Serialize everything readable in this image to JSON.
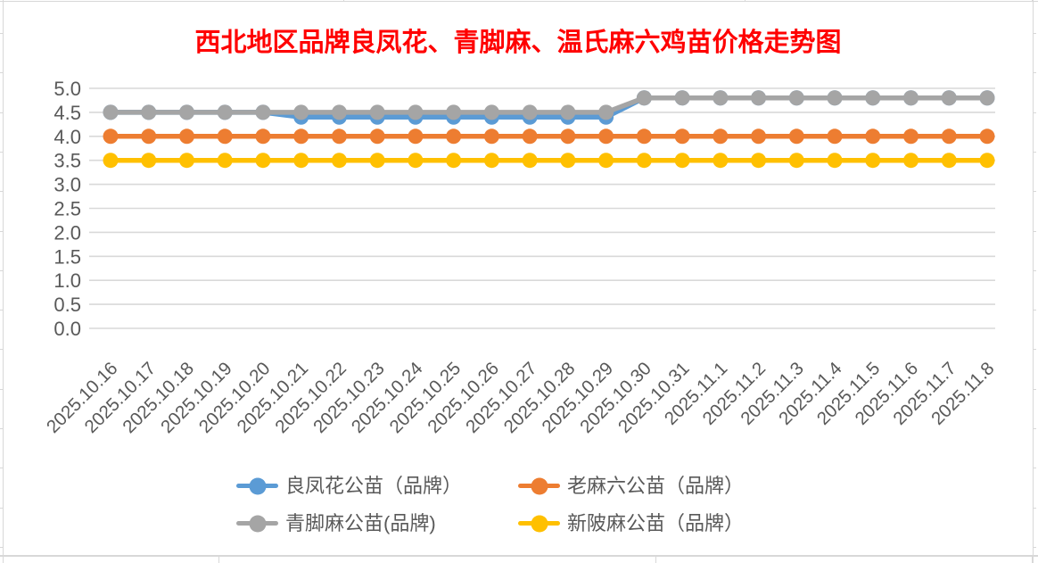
{
  "chart_data": {
    "type": "line",
    "title": "西北地区品牌良凤花、青脚麻、温氏麻六鸡苗价格走势图",
    "title_color": "#FF0000",
    "categories": [
      "2025.10.16",
      "2025.10.17",
      "2025.10.18",
      "2025.10.19",
      "2025.10.20",
      "2025.10.21",
      "2025.10.22",
      "2025.10.23",
      "2025.10.24",
      "2025.10.25",
      "2025.10.26",
      "2025.10.27",
      "2025.10.28",
      "2025.10.29",
      "2025.10.30",
      "2025.10.31",
      "2025.11.1",
      "2025.11.2",
      "2025.11.3",
      "2025.11.4",
      "2025.11.5",
      "2025.11.6",
      "2025.11.7",
      "2025.11.8"
    ],
    "series": [
      {
        "name": "良凤花公苗（品牌）",
        "color": "#5B9BD5",
        "values": [
          4.5,
          4.5,
          4.5,
          4.5,
          4.5,
          4.4,
          4.4,
          4.4,
          4.4,
          4.4,
          4.4,
          4.4,
          4.4,
          4.4,
          4.8,
          4.8,
          4.8,
          4.8,
          4.8,
          4.8,
          4.8,
          4.8,
          4.8,
          4.8
        ]
      },
      {
        "name": "老麻六公苗（品牌）",
        "color": "#ED7D31",
        "values": [
          4.0,
          4.0,
          4.0,
          4.0,
          4.0,
          4.0,
          4.0,
          4.0,
          4.0,
          4.0,
          4.0,
          4.0,
          4.0,
          4.0,
          4.0,
          4.0,
          4.0,
          4.0,
          4.0,
          4.0,
          4.0,
          4.0,
          4.0,
          4.0
        ]
      },
      {
        "name": "青脚麻公苗(品牌)",
        "color": "#A5A5A5",
        "values": [
          4.5,
          4.5,
          4.5,
          4.5,
          4.5,
          4.5,
          4.5,
          4.5,
          4.5,
          4.5,
          4.5,
          4.5,
          4.5,
          4.5,
          4.8,
          4.8,
          4.8,
          4.8,
          4.8,
          4.8,
          4.8,
          4.8,
          4.8,
          4.8
        ]
      },
      {
        "name": "新陂麻公苗（品牌）",
        "color": "#FFC000",
        "values": [
          3.5,
          3.5,
          3.5,
          3.5,
          3.5,
          3.5,
          3.5,
          3.5,
          3.5,
          3.5,
          3.5,
          3.5,
          3.5,
          3.5,
          3.5,
          3.5,
          3.5,
          3.5,
          3.5,
          3.5,
          3.5,
          3.5,
          3.5,
          3.5
        ]
      }
    ],
    "ylim": [
      0.0,
      5.0
    ],
    "ytick_step": 0.5,
    "ytick_labels": [
      "0.0",
      "0.5",
      "1.0",
      "1.5",
      "2.0",
      "2.5",
      "3.0",
      "3.5",
      "4.0",
      "4.5",
      "5.0"
    ],
    "grid": true,
    "legend_position": "bottom",
    "axis_label_color": "#595959",
    "gridline_color": "#D9D9D9"
  }
}
